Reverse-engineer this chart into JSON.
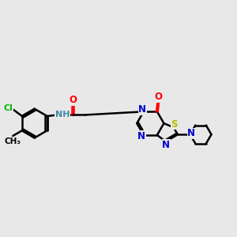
{
  "bg_color": "#e8e8e8",
  "bond_color": "#000000",
  "bond_width": 1.8,
  "atom_colors": {
    "C": "#000000",
    "N": "#0000cc",
    "O": "#ff0000",
    "S": "#bbbb00",
    "Cl": "#00bb00",
    "H": "#4488aa"
  },
  "font_size": 8.5,
  "font_size_small": 7.5
}
